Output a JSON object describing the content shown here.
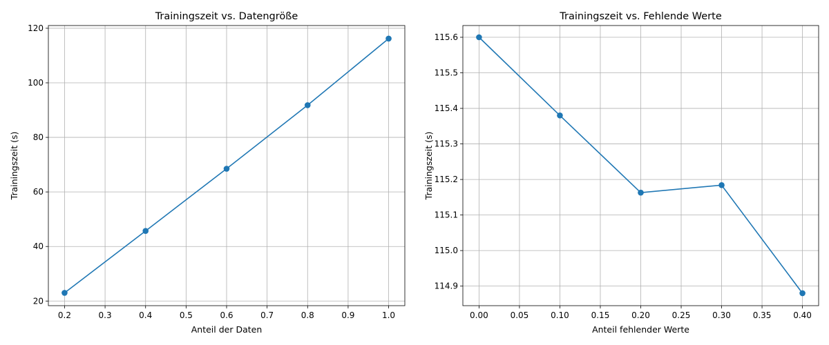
{
  "chart_data": [
    {
      "type": "line",
      "title": "Trainingszeit vs. Datengröße",
      "xlabel": "Anteil der Daten",
      "ylabel": "Trainingszeit (s)",
      "grid": true,
      "x": [
        0.2,
        0.4,
        0.6,
        0.8,
        1.0
      ],
      "series": [
        {
          "values": [
            23.0,
            45.7,
            68.5,
            91.8,
            116.2
          ],
          "color": "#1f77b4",
          "marker": "circle"
        }
      ],
      "xlim": [
        0.16,
        1.04
      ],
      "ylim": [
        18.3,
        121.0
      ],
      "xticks": [
        0.2,
        0.3,
        0.4,
        0.5,
        0.6,
        0.7,
        0.8,
        0.9,
        1.0
      ],
      "xtick_labels": [
        "0.2",
        "0.3",
        "0.4",
        "0.5",
        "0.6",
        "0.7",
        "0.8",
        "0.9",
        "1.0"
      ],
      "yticks": [
        20,
        40,
        60,
        80,
        100,
        120
      ],
      "ytick_labels": [
        "20",
        "40",
        "60",
        "80",
        "100",
        "120"
      ]
    },
    {
      "type": "line",
      "title": "Trainingszeit vs. Fehlende Werte",
      "xlabel": "Anteil fehlender Werte",
      "ylabel": "Trainingszeit (s)",
      "grid": true,
      "x": [
        0.0,
        0.1,
        0.2,
        0.3,
        0.4
      ],
      "series": [
        {
          "values": [
            115.6,
            115.38,
            115.163,
            115.184,
            114.88
          ],
          "color": "#1f77b4",
          "marker": "circle"
        }
      ],
      "xlim": [
        -0.02,
        0.42
      ],
      "ylim": [
        114.845,
        115.633
      ],
      "xticks": [
        0.0,
        0.05,
        0.1,
        0.15,
        0.2,
        0.25,
        0.3,
        0.35,
        0.4
      ],
      "xtick_labels": [
        "0.00",
        "0.05",
        "0.10",
        "0.15",
        "0.20",
        "0.25",
        "0.30",
        "0.35",
        "0.40"
      ],
      "yticks": [
        114.9,
        115.0,
        115.1,
        115.2,
        115.3,
        115.4,
        115.5,
        115.6
      ],
      "ytick_labels": [
        "114.9",
        "115.0",
        "115.1",
        "115.2",
        "115.3",
        "115.4",
        "115.5",
        "115.6"
      ]
    }
  ]
}
